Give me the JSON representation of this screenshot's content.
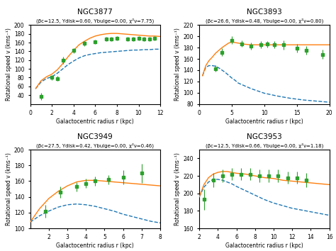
{
  "chart_data": [
    {
      "type": "line",
      "title": "NGC3877",
      "subtitle": "(βc=12.5, Υdisk=0.60, Υbulge=0.00, χ²ν=7.75)",
      "xlabel": "Galactocentric radius r (kpc)",
      "ylabel": "Rotational speed v (kms⁻¹)",
      "xlim": [
        0,
        12
      ],
      "ylim": [
        20,
        200
      ],
      "xticks": [
        0,
        2,
        4,
        6,
        8,
        10,
        12
      ],
      "yticks": [
        40,
        60,
        80,
        100,
        120,
        140,
        160,
        180,
        200
      ],
      "series": [
        {
          "type": "line",
          "line_style": "dashed",
          "x": [
            0.5,
            1.0,
            1.5,
            2.0,
            2.5,
            3.0,
            3.5,
            4.0,
            4.5,
            5.0,
            5.5,
            6.0,
            6.5,
            7.0,
            7.5,
            8.0,
            8.5,
            9.0,
            9.5,
            10.0,
            10.5,
            11.0,
            11.5,
            12.0
          ],
          "values": [
            55,
            70,
            78,
            82,
            90,
            100,
            110,
            118,
            125,
            130,
            133,
            135,
            137,
            138,
            139,
            140,
            141,
            142,
            143,
            143,
            144,
            144,
            145,
            145
          ]
        },
        {
          "type": "line",
          "line_style": "solid",
          "x": [
            0.5,
            1.0,
            1.5,
            2.0,
            2.5,
            3.0,
            3.5,
            4.0,
            4.5,
            5.0,
            5.5,
            6.0,
            6.5,
            7.0,
            7.5,
            8.0,
            8.5,
            9.0,
            9.5,
            10.0,
            10.5,
            11.0,
            11.5,
            12.0
          ],
          "values": [
            55,
            73,
            82,
            88,
            98,
            112,
            128,
            142,
            155,
            163,
            170,
            175,
            178,
            180,
            181,
            181,
            180,
            179,
            178,
            177,
            176,
            175,
            175,
            174
          ]
        },
        {
          "type": "scatter",
          "marker": "square",
          "x": [
            1.0,
            2.0,
            2.5,
            3.0,
            4.0,
            5.0,
            6.0,
            7.0,
            7.5,
            8.0,
            9.0,
            9.5,
            10.0,
            10.5,
            11.0,
            11.5
          ],
          "values": [
            37,
            80,
            78,
            120,
            142,
            158,
            162,
            168,
            168,
            170,
            168,
            168,
            170,
            168,
            168,
            170
          ],
          "errors": [
            8,
            6,
            6,
            8,
            6,
            6,
            5,
            5,
            5,
            5,
            5,
            5,
            5,
            5,
            5,
            5
          ]
        }
      ]
    },
    {
      "type": "line",
      "title": "NGC3893",
      "subtitle": "(βc=26.6, Υdisk=0.48, Υbulge=0.00, χ²ν=0.80)",
      "xlabel": "Galactocentric radius r (kpc)",
      "ylabel": "Rotational speed v (kms⁻¹)",
      "xlim": [
        0,
        20
      ],
      "ylim": [
        80,
        220
      ],
      "xticks": [
        0,
        5,
        10,
        15,
        20
      ],
      "yticks": [
        80,
        100,
        120,
        140,
        160,
        180,
        200,
        220
      ],
      "series": [
        {
          "type": "line",
          "line_style": "dashed",
          "x": [
            0.5,
            1.0,
            1.5,
            2.0,
            2.5,
            3.0,
            3.5,
            4.0,
            4.5,
            5.0,
            5.5,
            6.0,
            7.0,
            8.0,
            9.0,
            10.0,
            12.0,
            14.0,
            16.0,
            18.0,
            20.0
          ],
          "values": [
            130,
            145,
            148,
            148,
            147,
            144,
            140,
            136,
            131,
            126,
            122,
            117,
            112,
            107,
            103,
            99,
            94,
            90,
            87,
            85,
            83
          ]
        },
        {
          "type": "line",
          "line_style": "solid",
          "x": [
            0.5,
            1.0,
            1.5,
            2.0,
            2.5,
            3.0,
            3.5,
            4.0,
            4.5,
            5.0,
            5.5,
            6.0,
            6.5,
            7.0,
            8.0,
            9.0,
            10.0,
            11.0,
            12.0,
            13.0,
            14.0,
            15.0,
            16.0,
            17.0,
            18.0,
            19.0,
            20.0
          ],
          "values": [
            130,
            148,
            157,
            163,
            170,
            175,
            180,
            184,
            188,
            190,
            189,
            188,
            187,
            186,
            185,
            185,
            185,
            185,
            185,
            185,
            185,
            185,
            185,
            185,
            185,
            185,
            185
          ]
        },
        {
          "type": "scatter",
          "marker": "square",
          "x": [
            2.5,
            3.5,
            5.0,
            6.5,
            8.0,
            9.5,
            10.5,
            11.5,
            13.0,
            15.0,
            16.5,
            19.0
          ],
          "values": [
            143,
            172,
            193,
            187,
            183,
            185,
            186,
            185,
            185,
            179,
            175,
            168
          ],
          "errors": [
            6,
            7,
            7,
            6,
            6,
            6,
            6,
            6,
            8,
            8,
            8,
            8
          ]
        }
      ]
    },
    {
      "type": "line",
      "title": "NGC3949",
      "subtitle": "(βc=27.5, Υdisk=0.42, Υbulge=0.00, χ²ν=0.46)",
      "xlabel": "Galactocentric radius r (kpc)",
      "ylabel": "Rotational speed v (kms⁻¹)",
      "xlim": [
        1,
        8
      ],
      "ylim": [
        100,
        200
      ],
      "xticks": [
        2,
        3,
        4,
        5,
        6,
        7,
        8
      ],
      "yticks": [
        100,
        120,
        140,
        160,
        180,
        200
      ],
      "series": [
        {
          "type": "line",
          "line_style": "dashed",
          "x": [
            1.0,
            1.5,
            2.0,
            2.5,
            3.0,
            3.5,
            4.0,
            4.5,
            5.0,
            5.5,
            6.0,
            6.5,
            7.0,
            7.5,
            8.0
          ],
          "values": [
            108,
            116,
            122,
            127,
            130,
            131,
            130,
            128,
            125,
            122,
            118,
            115,
            112,
            109,
            107
          ]
        },
        {
          "type": "line",
          "line_style": "solid",
          "x": [
            1.0,
            1.5,
            2.0,
            2.5,
            3.0,
            3.5,
            4.0,
            4.5,
            5.0,
            5.5,
            6.0,
            6.5,
            7.0,
            7.5,
            8.0
          ],
          "values": [
            108,
            125,
            138,
            147,
            154,
            159,
            161,
            161,
            160,
            159,
            158,
            157,
            156,
            155,
            154
          ]
        },
        {
          "type": "scatter",
          "marker": "square",
          "x": [
            1.8,
            2.6,
            3.5,
            4.0,
            4.5,
            5.2,
            6.0,
            7.0
          ],
          "values": [
            122,
            146,
            153,
            157,
            160,
            162,
            165,
            170
          ],
          "errors": [
            8,
            7,
            6,
            6,
            6,
            6,
            9,
            12
          ]
        }
      ]
    },
    {
      "type": "line",
      "title": "NGC3953",
      "subtitle": "(βc=12.5, Υdisk=0.66, Υbulge=0.00, χ²ν=1.18)",
      "xlabel": "Galactocentric radius r (kpc)",
      "ylabel": "Rotational speed v (kms⁻¹)",
      "xlim": [
        2,
        16
      ],
      "ylim": [
        160,
        250
      ],
      "xticks": [
        2,
        4,
        6,
        8,
        10,
        12,
        14,
        16
      ],
      "yticks": [
        160,
        180,
        200,
        220,
        240
      ],
      "series": [
        {
          "type": "line",
          "line_style": "dashed",
          "x": [
            2.0,
            2.5,
            3.0,
            3.5,
            4.0,
            4.5,
            5.0,
            5.5,
            6.0,
            7.0,
            8.0,
            9.0,
            10.0,
            11.0,
            12.0,
            13.0,
            14.0,
            15.0,
            16.0
          ],
          "values": [
            196,
            207,
            213,
            216,
            216,
            215,
            213,
            211,
            208,
            203,
            198,
            193,
            189,
            186,
            183,
            181,
            179,
            177,
            175
          ]
        },
        {
          "type": "line",
          "line_style": "solid",
          "x": [
            2.0,
            2.5,
            3.0,
            3.5,
            4.0,
            4.5,
            5.0,
            5.5,
            6.0,
            7.0,
            8.0,
            9.0,
            10.0,
            11.0,
            12.0,
            13.0,
            14.0,
            15.0,
            16.0
          ],
          "values": [
            196,
            210,
            218,
            222,
            224,
            225,
            225,
            224,
            223,
            222,
            220,
            218,
            217,
            215,
            214,
            213,
            212,
            211,
            210
          ]
        },
        {
          "type": "scatter",
          "marker": "square",
          "x": [
            2.5,
            3.5,
            4.5,
            5.5,
            6.5,
            7.5,
            8.5,
            9.5,
            10.5,
            11.5,
            12.5,
            13.5
          ],
          "values": [
            193,
            215,
            220,
            222,
            222,
            222,
            220,
            220,
            220,
            218,
            218,
            215
          ],
          "errors": [
            12,
            8,
            7,
            7,
            7,
            7,
            7,
            7,
            7,
            7,
            7,
            8
          ]
        }
      ]
    }
  ]
}
